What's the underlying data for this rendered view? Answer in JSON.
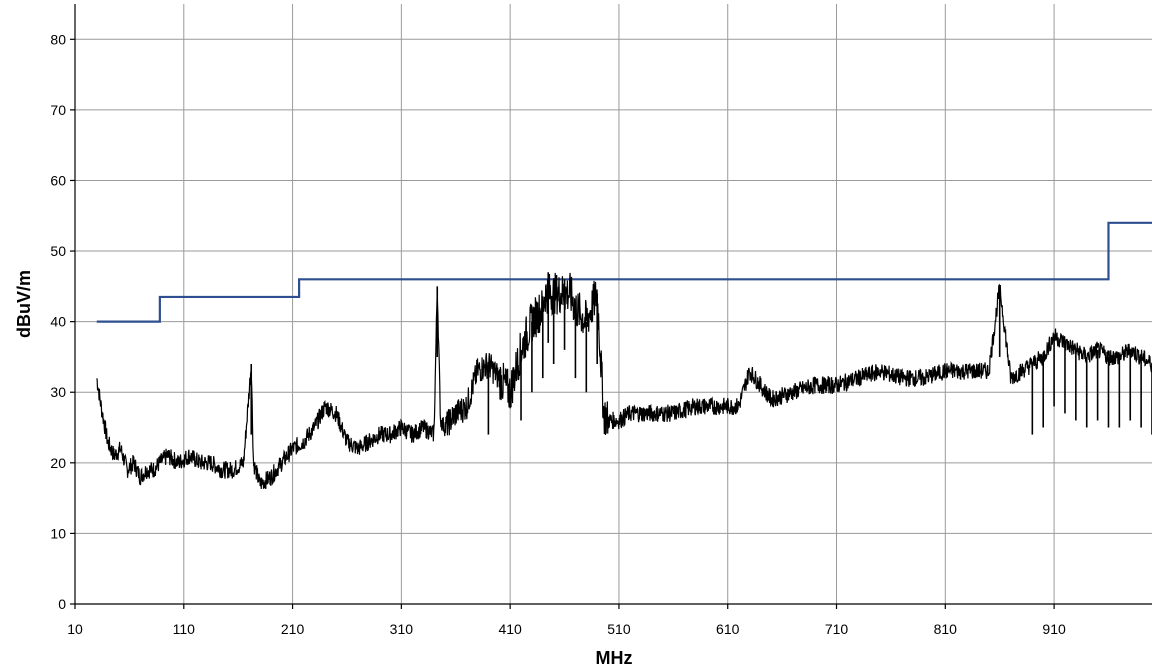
{
  "chart_data": {
    "type": "line",
    "title": "",
    "xlabel": "MHz",
    "ylabel": "dBuV/m",
    "xlim": [
      10,
      1000
    ],
    "ylim": [
      0,
      85
    ],
    "x_ticks": [
      "10",
      "110",
      "210",
      "310",
      "410",
      "510",
      "610",
      "710",
      "810",
      "910"
    ],
    "y_ticks": [
      "0",
      "10",
      "20",
      "30",
      "40",
      "50",
      "60",
      "70",
      "80"
    ],
    "grid": true,
    "legend": "none",
    "series": [
      {
        "role": "limit",
        "color": "#2e4f8f",
        "x": [
          30,
          88,
          88,
          216,
          216,
          960,
          960,
          1000
        ],
        "y": [
          40,
          40,
          43.5,
          43.5,
          46,
          46,
          54,
          54
        ]
      },
      {
        "role": "measurement",
        "color": "#000000",
        "x": [
          30,
          34,
          40,
          46,
          52,
          58,
          64,
          70,
          76,
          82,
          88,
          95,
          105,
          115,
          125,
          135,
          145,
          155,
          165,
          172,
          174,
          180,
          190,
          200,
          210,
          220,
          230,
          240,
          250,
          260,
          270,
          280,
          290,
          300,
          310,
          320,
          330,
          340,
          343,
          346,
          350,
          360,
          370,
          380,
          390,
          400,
          410,
          420,
          430,
          440,
          445,
          450,
          460,
          470,
          480,
          490,
          496,
          500,
          510,
          520,
          530,
          540,
          560,
          580,
          600,
          620,
          630,
          650,
          670,
          690,
          710,
          730,
          750,
          770,
          790,
          810,
          830,
          850,
          860,
          870,
          890,
          900,
          910,
          920,
          930,
          940,
          950,
          960,
          970,
          980,
          990,
          1000
        ],
        "y": [
          32,
          28,
          23,
          21,
          22,
          19,
          20,
          18,
          19,
          19,
          20,
          21,
          20,
          21,
          20,
          20,
          19,
          19,
          20,
          34,
          20,
          17,
          18,
          20,
          22,
          23,
          25,
          28,
          27,
          23,
          22,
          23,
          24,
          24,
          25,
          24,
          25,
          24,
          45,
          26,
          25,
          27,
          28,
          33,
          34,
          32,
          30,
          36,
          40,
          42,
          47,
          44,
          46,
          42,
          40,
          44,
          27,
          26,
          26,
          27,
          27,
          27,
          27,
          28,
          28,
          28,
          33,
          29,
          30,
          31,
          31,
          32,
          33,
          32,
          32,
          33,
          33,
          33,
          45,
          32,
          34,
          35,
          38,
          37,
          36,
          35,
          36,
          35,
          35,
          36,
          35,
          34
        ]
      }
    ]
  }
}
